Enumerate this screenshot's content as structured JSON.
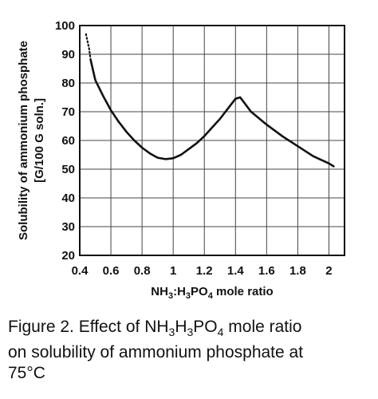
{
  "chart_data": {
    "type": "line",
    "title": "",
    "xlabel": "NH3:H3PO4 mole ratio",
    "ylabel_line1": "Solubility of ammonium phosphate",
    "ylabel_line2": "[G/100 G soln.]",
    "xlim": [
      0.4,
      2.1
    ],
    "ylim": [
      20,
      100
    ],
    "x_ticks": [
      0.4,
      0.6,
      0.8,
      1.0,
      1.2,
      1.4,
      1.6,
      1.8,
      2.0
    ],
    "x_tick_labels": [
      "0.4",
      "0.6",
      "0.8",
      "1",
      "1.2",
      "1.4",
      "1.6",
      "1.8",
      "2"
    ],
    "y_ticks": [
      20,
      30,
      40,
      50,
      60,
      70,
      80,
      90,
      100
    ],
    "y_tick_labels": [
      "20",
      "30",
      "40",
      "50",
      "60",
      "70",
      "80",
      "90",
      "100"
    ],
    "grid": true,
    "series": [
      {
        "dotted_segment": [
          [
            0.44,
            97
          ],
          [
            0.46,
            92
          ],
          [
            0.47,
            88
          ]
        ],
        "x": [
          0.47,
          0.5,
          0.55,
          0.6,
          0.65,
          0.7,
          0.75,
          0.8,
          0.85,
          0.9,
          0.95,
          1.0,
          1.05,
          1.1,
          1.15,
          1.2,
          1.25,
          1.3,
          1.35,
          1.4,
          1.43,
          1.5,
          1.6,
          1.7,
          1.8,
          1.9,
          2.0,
          2.03
        ],
        "y": [
          88,
          81,
          75.5,
          70.5,
          66.5,
          63,
          60,
          57.5,
          55.5,
          54,
          53.5,
          53.8,
          55,
          57,
          59,
          61.5,
          64.5,
          67.5,
          71,
          74.5,
          75,
          70,
          65.5,
          61.5,
          58,
          54.5,
          52,
          51
        ]
      }
    ]
  },
  "caption": {
    "prefix": "Figure 2. Effect of NH",
    "s1": "3",
    "mid1": "H",
    "s2": "3",
    "mid2": "PO",
    "s3": "4",
    "rest_line1": " mole ratio",
    "line2": "on solubility of ammonium phosphate at",
    "line3": "75°C"
  }
}
